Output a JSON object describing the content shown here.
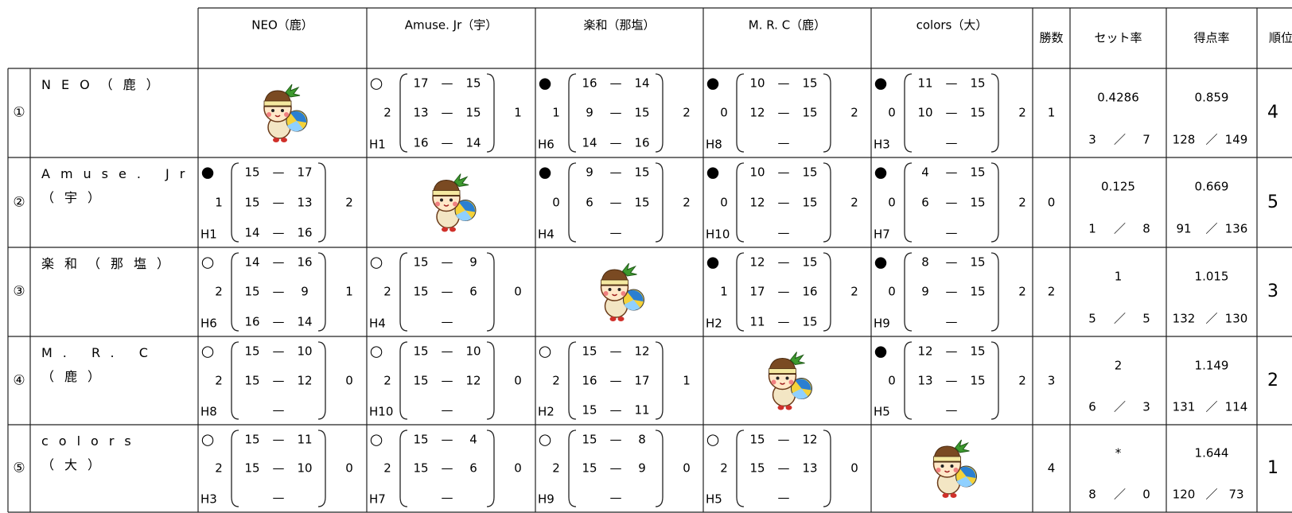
{
  "columns": [
    "NEO（鹿）",
    "Amuse. Jr（宇）",
    "楽和（那塩）",
    "M. R. C（鹿）",
    "colors（大）",
    "勝数",
    "セット率",
    "得点率",
    "順位"
  ],
  "score_separator": "—",
  "ratio_separator": "／",
  "rows": [
    {
      "number": "①",
      "name": "NEO（鹿）",
      "matches": [
        null,
        {
          "mark": "○",
          "sets": 2,
          "game": "H1",
          "scores": [
            [
              17,
              15
            ],
            [
              13,
              15
            ],
            [
              16,
              14
            ]
          ],
          "opp_sets": 1
        },
        {
          "mark": "●",
          "sets": 1,
          "game": "H6",
          "scores": [
            [
              16,
              14
            ],
            [
              9,
              15
            ],
            [
              14,
              16
            ]
          ],
          "opp_sets": 2
        },
        {
          "mark": "●",
          "sets": 0,
          "game": "H8",
          "scores": [
            [
              10,
              15
            ],
            [
              12,
              15
            ],
            null
          ],
          "opp_sets": 2
        },
        {
          "mark": "●",
          "sets": 0,
          "game": "H3",
          "scores": [
            [
              11,
              15
            ],
            [
              10,
              15
            ],
            null
          ],
          "opp_sets": 2
        }
      ],
      "wins": 1,
      "set_rate": 0.4286,
      "sets_won": 3,
      "sets_lost": 7,
      "point_rate": 0.859,
      "points_for": 128,
      "points_against": 149,
      "rank": 4
    },
    {
      "number": "②",
      "name": "Amuse. Jr（宇）",
      "matches": [
        {
          "mark": "●",
          "sets": 1,
          "game": "H1",
          "scores": [
            [
              15,
              17
            ],
            [
              15,
              13
            ],
            [
              14,
              16
            ]
          ],
          "opp_sets": 2
        },
        null,
        {
          "mark": "●",
          "sets": 0,
          "game": "H4",
          "scores": [
            [
              9,
              15
            ],
            [
              6,
              15
            ],
            null
          ],
          "opp_sets": 2
        },
        {
          "mark": "●",
          "sets": 0,
          "game": "H10",
          "scores": [
            [
              10,
              15
            ],
            [
              12,
              15
            ],
            null
          ],
          "opp_sets": 2
        },
        {
          "mark": "●",
          "sets": 0,
          "game": "H7",
          "scores": [
            [
              4,
              15
            ],
            [
              6,
              15
            ],
            null
          ],
          "opp_sets": 2
        }
      ],
      "wins": 0,
      "set_rate": 0.125,
      "sets_won": 1,
      "sets_lost": 8,
      "point_rate": 0.669,
      "points_for": 91,
      "points_against": 136,
      "rank": 5
    },
    {
      "number": "③",
      "name": "楽和（那塩）",
      "matches": [
        {
          "mark": "○",
          "sets": 2,
          "game": "H6",
          "scores": [
            [
              14,
              16
            ],
            [
              15,
              9
            ],
            [
              16,
              14
            ]
          ],
          "opp_sets": 1
        },
        {
          "mark": "○",
          "sets": 2,
          "game": "H4",
          "scores": [
            [
              15,
              9
            ],
            [
              15,
              6
            ],
            null
          ],
          "opp_sets": 0
        },
        null,
        {
          "mark": "●",
          "sets": 1,
          "game": "H2",
          "scores": [
            [
              12,
              15
            ],
            [
              17,
              16
            ],
            [
              11,
              15
            ]
          ],
          "opp_sets": 2
        },
        {
          "mark": "●",
          "sets": 0,
          "game": "H9",
          "scores": [
            [
              8,
              15
            ],
            [
              9,
              15
            ],
            null
          ],
          "opp_sets": 2
        }
      ],
      "wins": 2,
      "set_rate": 1,
      "sets_won": 5,
      "sets_lost": 5,
      "point_rate": 1.015,
      "points_for": 132,
      "points_against": 130,
      "rank": 3
    },
    {
      "number": "④",
      "name": "M. R. C（鹿）",
      "matches": [
        {
          "mark": "○",
          "sets": 2,
          "game": "H8",
          "scores": [
            [
              15,
              10
            ],
            [
              15,
              12
            ],
            null
          ],
          "opp_sets": 0
        },
        {
          "mark": "○",
          "sets": 2,
          "game": "H10",
          "scores": [
            [
              15,
              10
            ],
            [
              15,
              12
            ],
            null
          ],
          "opp_sets": 0
        },
        {
          "mark": "○",
          "sets": 2,
          "game": "H2",
          "scores": [
            [
              15,
              12
            ],
            [
              16,
              17
            ],
            [
              15,
              11
            ]
          ],
          "opp_sets": 1
        },
        null,
        {
          "mark": "●",
          "sets": 0,
          "game": "H5",
          "scores": [
            [
              12,
              15
            ],
            [
              13,
              15
            ],
            null
          ],
          "opp_sets": 2
        }
      ],
      "wins": 3,
      "set_rate": 2,
      "sets_won": 6,
      "sets_lost": 3,
      "point_rate": 1.149,
      "points_for": 131,
      "points_against": 114,
      "rank": 2
    },
    {
      "number": "⑤",
      "name": "colors（大）",
      "matches": [
        {
          "mark": "○",
          "sets": 2,
          "game": "H3",
          "scores": [
            [
              15,
              11
            ],
            [
              15,
              10
            ],
            null
          ],
          "opp_sets": 0
        },
        {
          "mark": "○",
          "sets": 2,
          "game": "H7",
          "scores": [
            [
              15,
              4
            ],
            [
              15,
              6
            ],
            null
          ],
          "opp_sets": 0
        },
        {
          "mark": "○",
          "sets": 2,
          "game": "H9",
          "scores": [
            [
              15,
              8
            ],
            [
              15,
              9
            ],
            null
          ],
          "opp_sets": 0
        },
        {
          "mark": "○",
          "sets": 2,
          "game": "H5",
          "scores": [
            [
              15,
              12
            ],
            [
              15,
              13
            ],
            null
          ],
          "opp_sets": 0
        },
        null
      ],
      "wins": 4,
      "set_rate": "*",
      "sets_won": 8,
      "sets_lost": 0,
      "point_rate": 1.644,
      "points_for": 120,
      "points_against": 73,
      "rank": 1
    }
  ]
}
